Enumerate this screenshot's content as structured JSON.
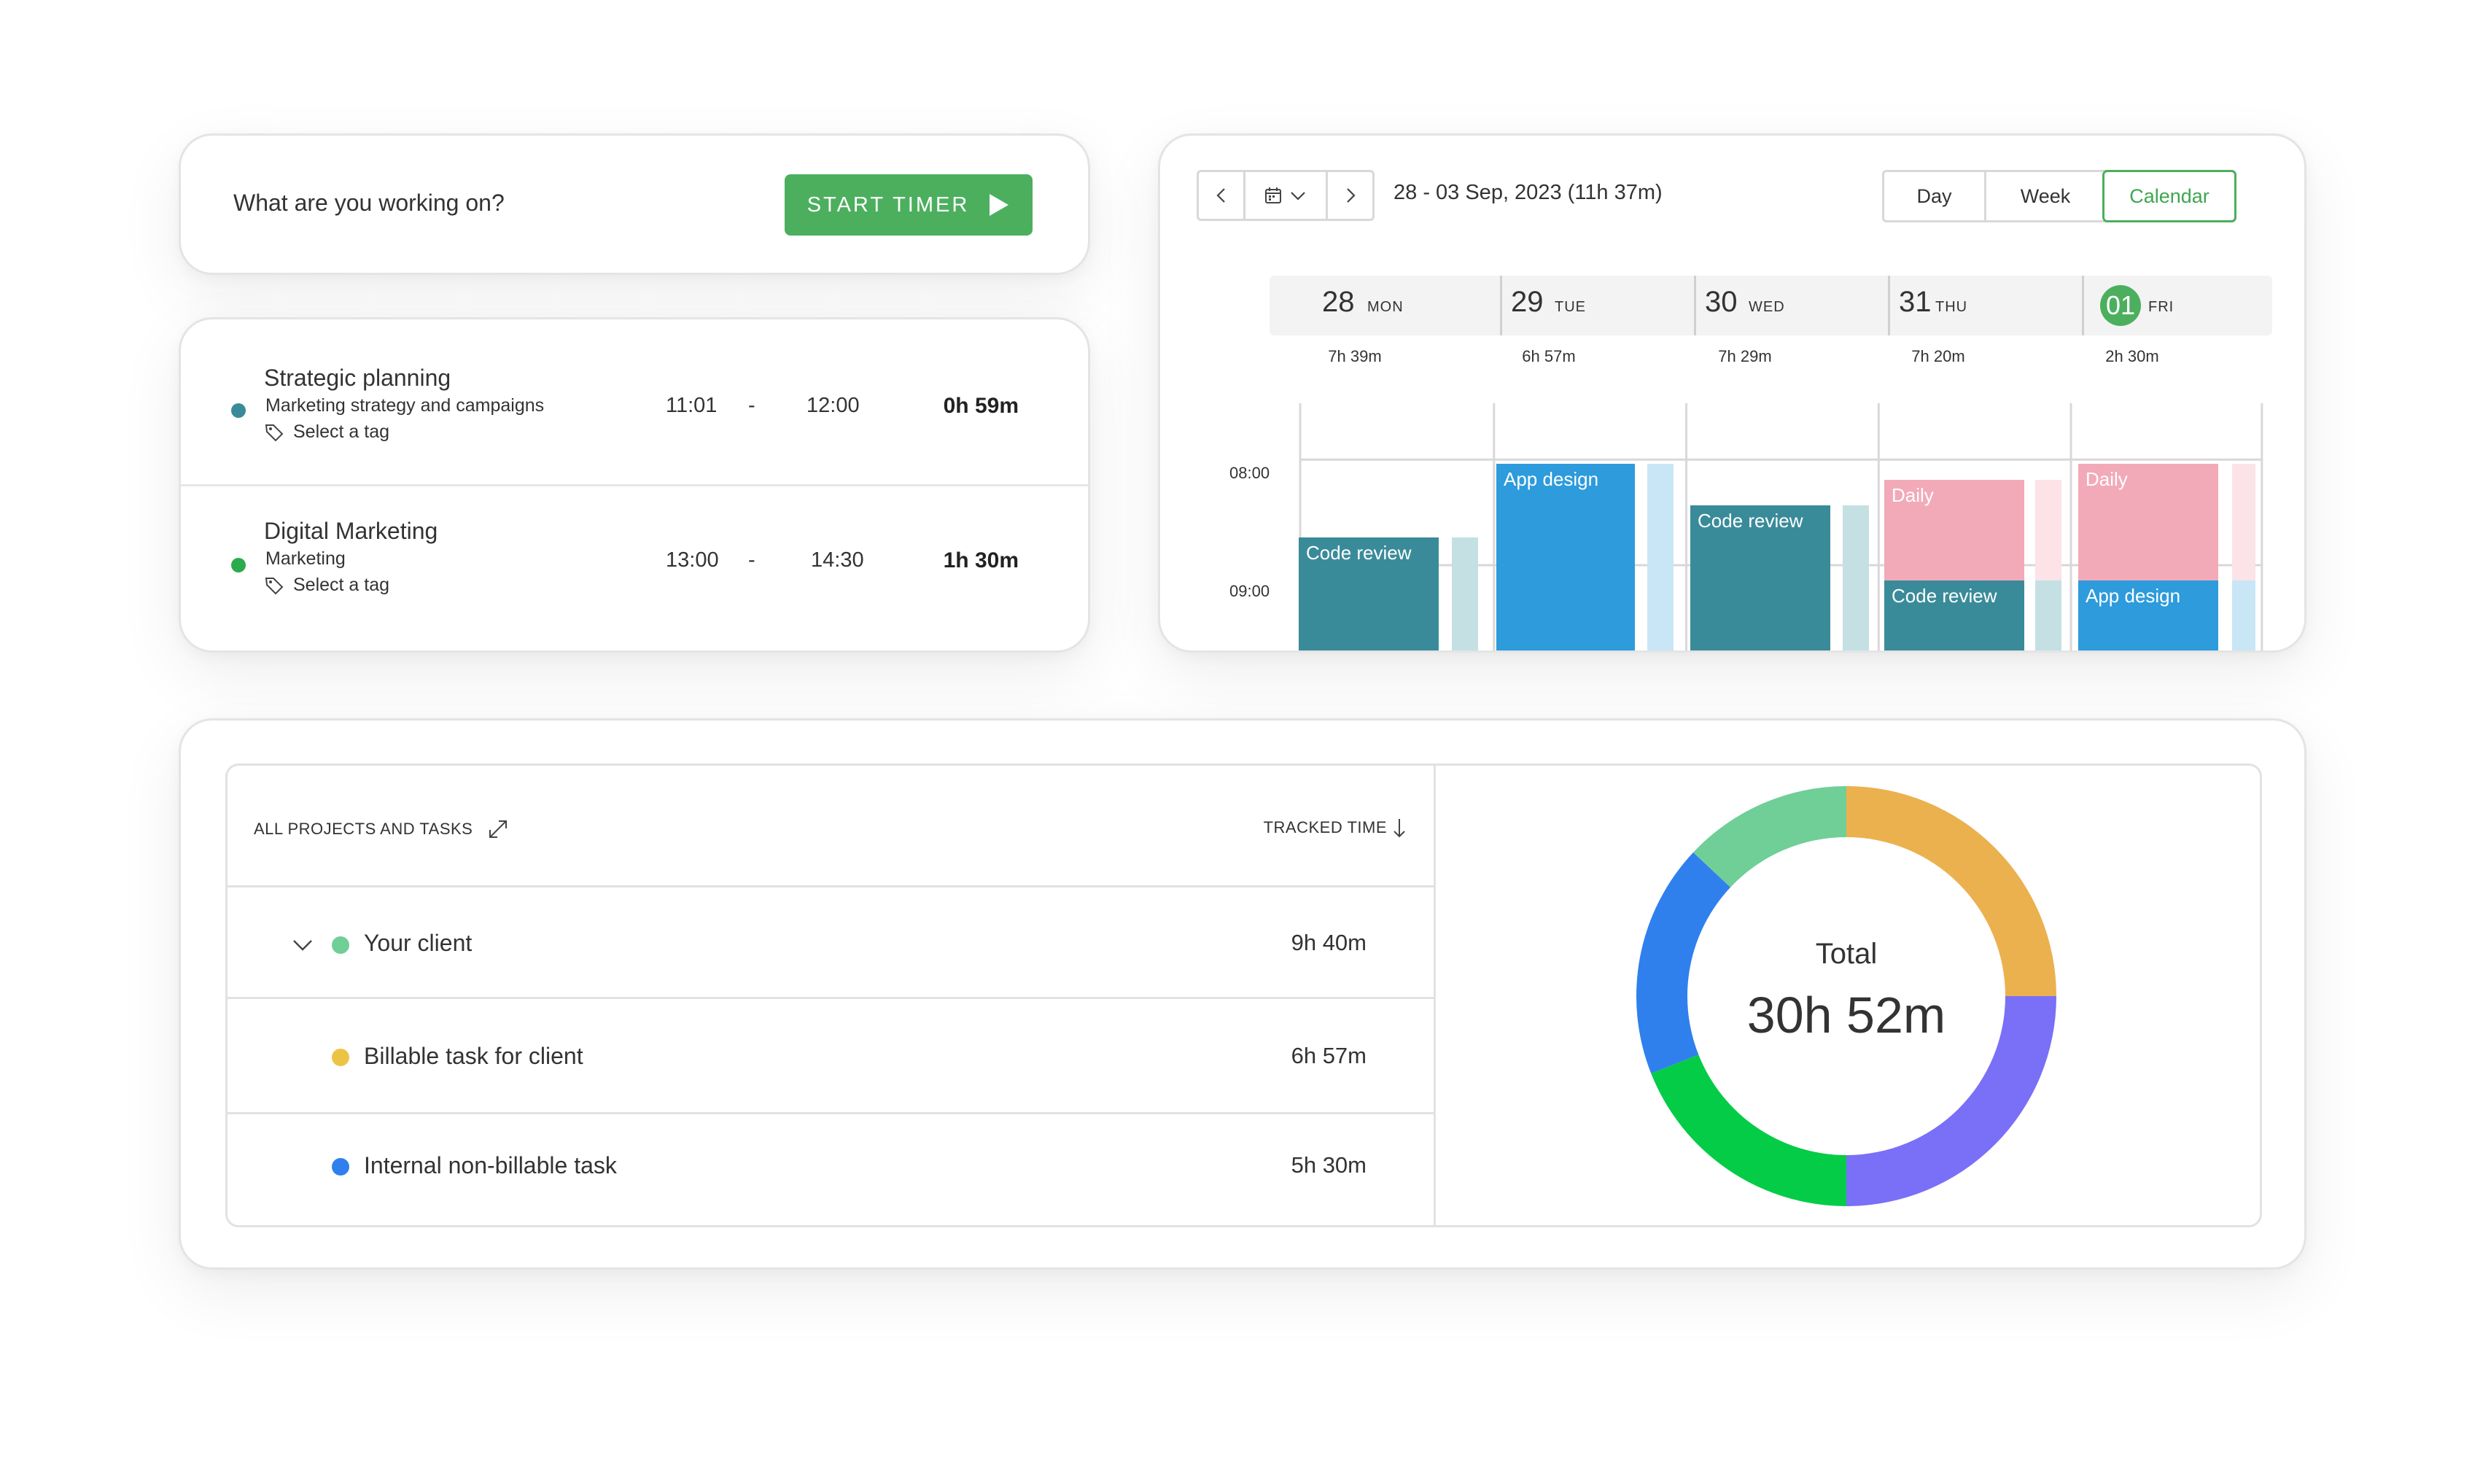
{
  "timer": {
    "prompt": "What are you working on?",
    "start_label": "START TIMER"
  },
  "entries": [
    {
      "title": "Strategic planning",
      "project": "Marketing strategy and campaigns",
      "tag": "Select a tag",
      "start": "11:01",
      "dash": "-",
      "end": "12:00",
      "duration": "0h 59m",
      "dot_color": "#3a8b9a"
    },
    {
      "title": "Digital Marketing",
      "project": "Marketing",
      "tag": "Select a tag",
      "start": "13:00",
      "dash": "-",
      "end": "14:30",
      "duration": "1h 30m",
      "dot_color": "#2bab4c"
    }
  ],
  "calendar": {
    "date_range": "28 - 03 Sep, 2023 (11h 37m)",
    "views": [
      "Day",
      "Week",
      "Calendar"
    ],
    "active_view": "Calendar",
    "days": [
      {
        "num": "28",
        "weekday": "MON",
        "total": "7h 39m"
      },
      {
        "num": "29",
        "weekday": "TUE",
        "total": "6h 57m"
      },
      {
        "num": "30",
        "weekday": "WED",
        "total": "7h 29m"
      },
      {
        "num": "31",
        "weekday": "THU",
        "total": "7h 20m"
      },
      {
        "num": "01",
        "weekday": "FRI",
        "total": "2h 30m",
        "today": true
      }
    ],
    "hours": [
      "08:00",
      "09:00"
    ],
    "blocks": [
      {
        "label": "Code review",
        "color": "#3a8b9a"
      },
      {
        "label": "App design",
        "color": "#2d9bdc"
      },
      {
        "label": "Code review",
        "color": "#3a8b9a"
      },
      {
        "label": "Daily",
        "color": "#f2aab8"
      },
      {
        "label": "Code review",
        "color": "#3a8b9a"
      },
      {
        "label": "Daily",
        "color": "#f2aab8"
      },
      {
        "label": "App design",
        "color": "#2d9bdc"
      }
    ]
  },
  "report": {
    "col_projects": "ALL PROJECTS AND TASKS",
    "col_tracked": "TRACKED TIME",
    "rows": [
      {
        "label": "Your client",
        "value": "9h 40m",
        "dot_color": "#6fcf97"
      },
      {
        "label": "Billable task for client",
        "value": "6h 57m",
        "dot_color": "#ecc445"
      },
      {
        "label": "Internal non-billable task",
        "value": "5h 30m",
        "dot_color": "#2f80ed"
      }
    ],
    "total_label": "Total",
    "total_value": "30h 52m"
  },
  "chart_data": {
    "type": "pie",
    "donut": true,
    "center_label": "Total",
    "center_value": "30h 52m",
    "slices": [
      {
        "color": "#ebb14f",
        "fraction": 0.25
      },
      {
        "color": "#7a6ff7",
        "fraction": 0.25
      },
      {
        "color": "#05cc47",
        "fraction": 0.19
      },
      {
        "color": "#2f80ed",
        "fraction": 0.18
      },
      {
        "color": "#6fcf97",
        "fraction": 0.13
      }
    ]
  }
}
